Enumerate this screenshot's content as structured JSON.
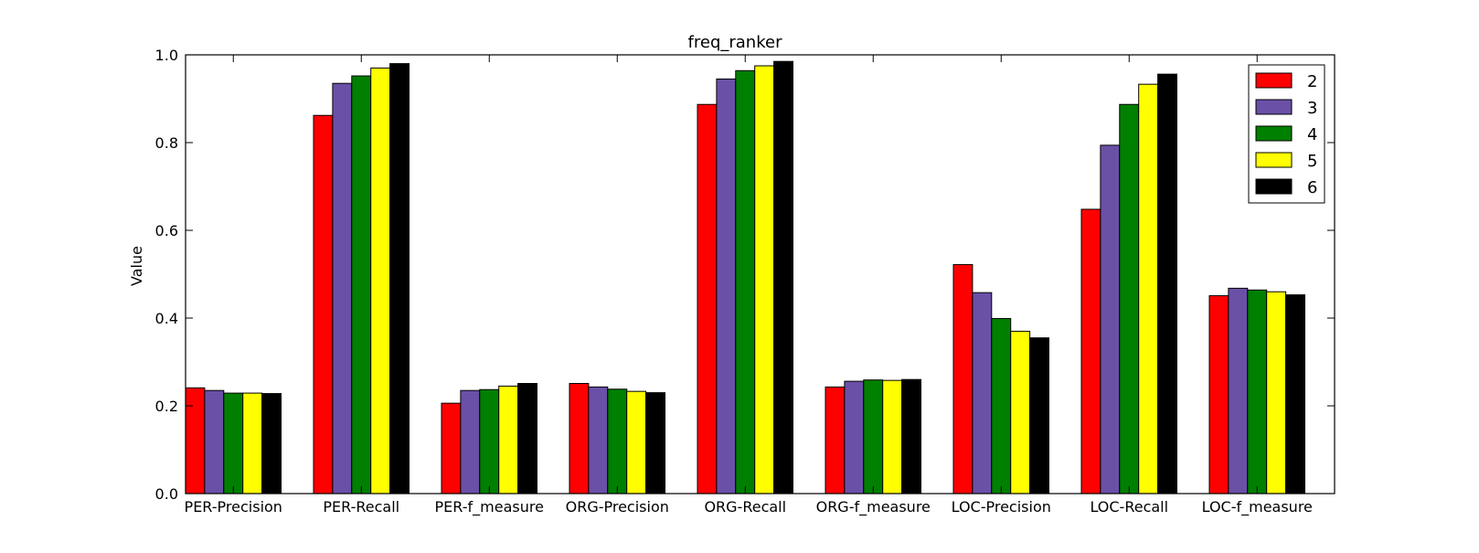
{
  "chart_data": {
    "type": "bar",
    "title": "freq_ranker",
    "xlabel": "",
    "ylabel": "Value",
    "ylim": [
      0.0,
      1.0
    ],
    "yticks": [
      "0.0",
      "0.2",
      "0.4",
      "0.6",
      "0.8",
      "1.0"
    ],
    "legend_position": "top-right",
    "grid": false,
    "categories": [
      "PER-Precision",
      "PER-Recall",
      "PER-f_measure",
      "ORG-Precision",
      "ORG-Recall",
      "ORG-f_measure",
      "LOC-Precision",
      "LOC-Recall",
      "LOC-f_measure"
    ],
    "series": [
      {
        "name": "2",
        "color": "#ff0000",
        "values": [
          0.241,
          0.862,
          0.206,
          0.251,
          0.887,
          0.243,
          0.522,
          0.648,
          0.451
        ]
      },
      {
        "name": "3",
        "color": "#6a50a7",
        "values": [
          0.235,
          0.935,
          0.235,
          0.243,
          0.945,
          0.256,
          0.458,
          0.794,
          0.468
        ]
      },
      {
        "name": "4",
        "color": "#008000",
        "values": [
          0.229,
          0.952,
          0.237,
          0.238,
          0.964,
          0.259,
          0.399,
          0.887,
          0.464
        ]
      },
      {
        "name": "5",
        "color": "#ffff00",
        "values": [
          0.229,
          0.97,
          0.245,
          0.233,
          0.975,
          0.258,
          0.37,
          0.933,
          0.46
        ]
      },
      {
        "name": "6",
        "color": "#000000",
        "values": [
          0.228,
          0.98,
          0.251,
          0.23,
          0.985,
          0.26,
          0.355,
          0.956,
          0.453
        ]
      }
    ]
  }
}
